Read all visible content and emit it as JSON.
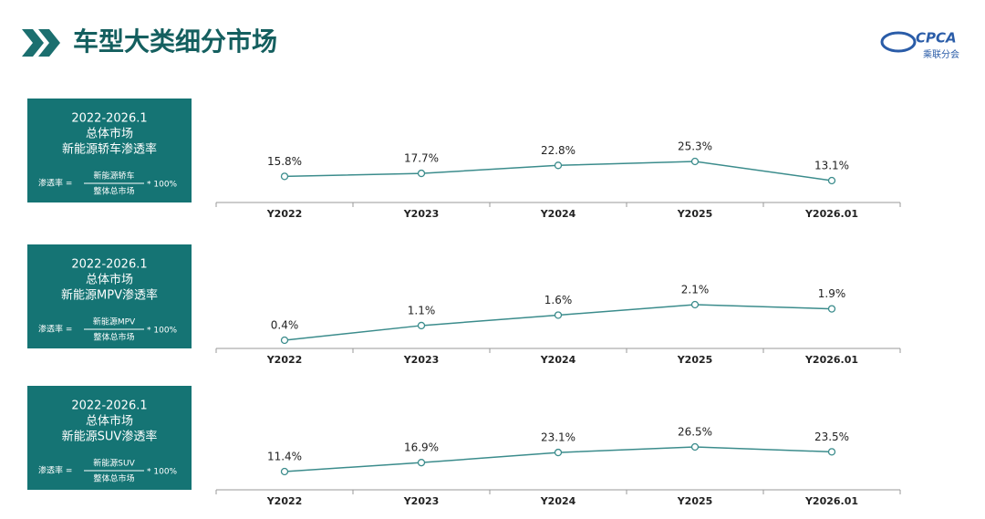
{
  "title": "车型大类细分市场",
  "logo": {
    "name": "CPCA",
    "org": "乘联分会"
  },
  "chart_data": [
    {
      "type": "line",
      "color": "#3b8c8c",
      "panel": {
        "period": "2022-2026.1",
        "market": "总体市场",
        "metric": "新能源轿车渗透率",
        "formula_label": "渗透率 =",
        "numerator": "新能源轿车",
        "denominator": "整体总市场",
        "multiplier": "* 100%"
      },
      "categories": [
        "Y2022",
        "Y2023",
        "Y2024",
        "Y2025",
        "Y2026.01"
      ],
      "values": [
        15.8,
        17.7,
        22.8,
        25.3,
        13.1
      ],
      "value_labels": [
        "15.8%",
        "17.7%",
        "22.8%",
        "25.3%",
        "13.1%"
      ]
    },
    {
      "type": "line",
      "color": "#3b8c8c",
      "panel": {
        "period": "2022-2026.1",
        "market": "总体市场",
        "metric": "新能源MPV渗透率",
        "formula_label": "渗透率 =",
        "numerator": "新能源MPV",
        "denominator": "整体总市场",
        "multiplier": "* 100%"
      },
      "categories": [
        "Y2022",
        "Y2023",
        "Y2024",
        "Y2025",
        "Y2026.01"
      ],
      "values": [
        0.4,
        1.1,
        1.6,
        2.1,
        1.9
      ],
      "value_labels": [
        "0.4%",
        "1.1%",
        "1.6%",
        "2.1%",
        "1.9%"
      ]
    },
    {
      "type": "line",
      "color": "#3b8c8c",
      "panel": {
        "period": "2022-2026.1",
        "market": "总体市场",
        "metric": "新能源SUV渗透率",
        "formula_label": "渗透率 =",
        "numerator": "新能源SUV",
        "denominator": "整体总市场",
        "multiplier": "* 100%"
      },
      "categories": [
        "Y2022",
        "Y2023",
        "Y2024",
        "Y2025",
        "Y2026.01"
      ],
      "values": [
        11.4,
        16.9,
        23.1,
        26.5,
        23.5
      ],
      "value_labels": [
        "11.4%",
        "16.9%",
        "23.1%",
        "26.5%",
        "23.5%"
      ]
    }
  ]
}
